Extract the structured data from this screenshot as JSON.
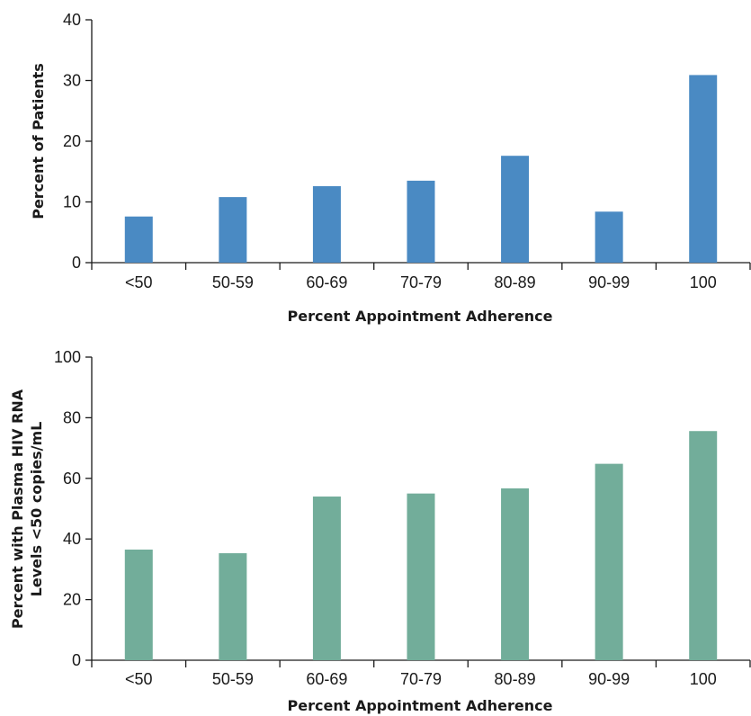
{
  "chart_data": [
    {
      "type": "bar",
      "categories": [
        "<50",
        "50-59",
        "60-69",
        "70-79",
        "80-89",
        "90-99",
        "100"
      ],
      "values": [
        7.6,
        10.8,
        12.6,
        13.5,
        17.6,
        8.4,
        30.9
      ],
      "xlabel": "Percent Appointment Adherence",
      "ylabel": "Percent of Patients",
      "ylim": [
        0,
        40
      ],
      "yticks": [
        "0",
        "10",
        "20",
        "30",
        "40"
      ],
      "color": "#4a8ac3",
      "grid": false
    },
    {
      "type": "bar",
      "categories": [
        "<50",
        "50-59",
        "60-69",
        "70-79",
        "80-89",
        "90-99",
        "100"
      ],
      "values": [
        36.5,
        35.3,
        54,
        55,
        56.7,
        64.8,
        75.6
      ],
      "xlabel": "Percent Appointment Adherence",
      "ylabel_lines": [
        "Percent with Plasma HIV RNA",
        "Levels <50 copies/mL"
      ],
      "ylim": [
        0,
        100
      ],
      "yticks": [
        "0",
        "20",
        "40",
        "60",
        "80",
        "100"
      ],
      "color": "#72ad9a",
      "grid": false
    }
  ]
}
